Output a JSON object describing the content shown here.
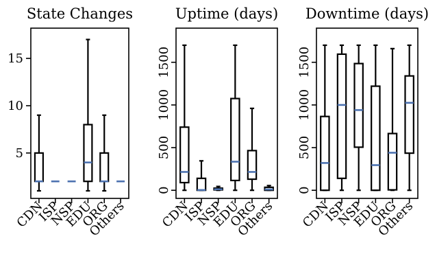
{
  "chart_data": [
    {
      "type": "box",
      "title": "State Changes",
      "categories": [
        "CDN",
        "ISP",
        "NSP",
        "EDU",
        "ORG",
        "Others"
      ],
      "yticks": [
        5,
        10,
        15
      ],
      "ylim": [
        0.2,
        18.2
      ],
      "boxes": [
        {
          "category": "CDN",
          "min": 1,
          "q1": 2,
          "median": 2,
          "q3": 5,
          "max": 9
        },
        {
          "category": "ISP",
          "min": 2,
          "q1": 2,
          "median": 2,
          "q3": 2,
          "max": 2
        },
        {
          "category": "NSP",
          "min": 2,
          "q1": 2,
          "median": 2,
          "q3": 2,
          "max": 2
        },
        {
          "category": "EDU",
          "min": 1,
          "q1": 2,
          "median": 4,
          "q3": 8,
          "max": 17
        },
        {
          "category": "ORG",
          "min": 1,
          "q1": 2,
          "median": 2,
          "q3": 5,
          "max": 9
        },
        {
          "category": "Others",
          "min": 2,
          "q1": 2,
          "median": 2,
          "q3": 2,
          "max": 2
        }
      ]
    },
    {
      "type": "box",
      "title": "Uptime (days)",
      "categories": [
        "CDN",
        "ISP",
        "NSP",
        "EDU",
        "ORG",
        "Others"
      ],
      "yticks": [
        0,
        500,
        1000,
        1500
      ],
      "ylim": [
        -95,
        1900
      ],
      "boxes": [
        {
          "category": "CDN",
          "min": 0,
          "q1": 90,
          "median": 215,
          "q3": 740,
          "max": 1700
        },
        {
          "category": "ISP",
          "min": 0,
          "q1": 0,
          "median": 3,
          "q3": 140,
          "max": 345
        },
        {
          "category": "NSP",
          "min": 0,
          "q1": 5,
          "median": 12,
          "q3": 25,
          "max": 45
        },
        {
          "category": "EDU",
          "min": 0,
          "q1": 115,
          "median": 335,
          "q3": 1075,
          "max": 1700
        },
        {
          "category": "ORG",
          "min": 0,
          "q1": 130,
          "median": 215,
          "q3": 465,
          "max": 960
        },
        {
          "category": "Others",
          "min": 0,
          "q1": 0,
          "median": 10,
          "q3": 35,
          "max": 55
        }
      ]
    },
    {
      "type": "box",
      "title": "Downtime (days)",
      "categories": [
        "CDN",
        "ISP",
        "NSP",
        "EDU",
        "ORG",
        "Others"
      ],
      "yticks": [
        0,
        500,
        1000,
        1500
      ],
      "ylim": [
        -95,
        1900
      ],
      "boxes": [
        {
          "category": "CDN",
          "min": 0,
          "q1": 0,
          "median": 320,
          "q3": 865,
          "max": 1700
        },
        {
          "category": "ISP",
          "min": 0,
          "q1": 140,
          "median": 1000,
          "q3": 1595,
          "max": 1700
        },
        {
          "category": "NSP",
          "min": 0,
          "q1": 505,
          "median": 940,
          "q3": 1485,
          "max": 1700
        },
        {
          "category": "EDU",
          "min": 0,
          "q1": 0,
          "median": 295,
          "q3": 1220,
          "max": 1700
        },
        {
          "category": "ORG",
          "min": 0,
          "q1": 5,
          "median": 440,
          "q3": 665,
          "max": 1660
        },
        {
          "category": "Others",
          "min": 0,
          "q1": 435,
          "median": 1025,
          "q3": 1340,
          "max": 1700
        }
      ]
    }
  ],
  "colors": {
    "median": "#4c72b0",
    "stroke": "#000000"
  }
}
